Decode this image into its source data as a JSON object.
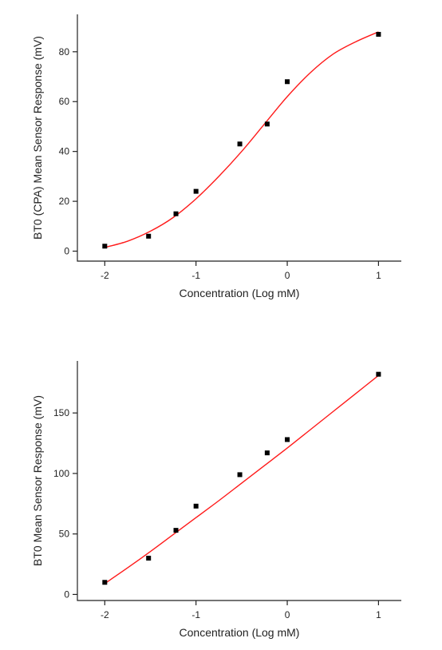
{
  "colors": {
    "background": "#ffffff",
    "axis": "#222222",
    "fit_line": "#ff1a1a",
    "marker": "#000000"
  },
  "chart_data": [
    {
      "type": "scatter",
      "title": "",
      "xlabel": "Concentration (Log mM)",
      "ylabel": "BT0 (CPA) Mean Sensor Response (mV)",
      "xlim": [
        -2.3,
        1.25
      ],
      "ylim": [
        -4,
        95
      ],
      "xticks": [
        -2,
        -1,
        0,
        1
      ],
      "yticks": [
        0,
        20,
        40,
        60,
        80
      ],
      "xtick_labels": [
        "-2",
        "-1",
        "0",
        "1"
      ],
      "ytick_labels": [
        "0",
        "20",
        "40",
        "60",
        "80"
      ],
      "grid": false,
      "legend": "none",
      "marker": "square",
      "series": [
        {
          "x": [
            -2,
            -1.52,
            -1.22,
            -1,
            -0.52,
            -0.22,
            0,
            1
          ],
          "y": [
            2,
            6,
            15,
            24,
            43,
            51,
            68,
            87
          ]
        }
      ],
      "fit": {
        "type": "sigmoid",
        "x": [
          -2,
          -1.75,
          -1.5,
          -1.25,
          -1,
          -0.75,
          -0.5,
          -0.25,
          0,
          0.25,
          0.5,
          0.75,
          1
        ],
        "y": [
          1.5,
          4,
          8,
          13.5,
          21,
          30,
          40,
          51,
          62,
          71.5,
          79,
          84,
          88
        ]
      }
    },
    {
      "type": "scatter",
      "title": "",
      "xlabel": "Concentration (Log mM)",
      "ylabel": "BT0 Mean Sensor Response (mV)",
      "xlim": [
        -2.3,
        1.25
      ],
      "ylim": [
        -5,
        193
      ],
      "xticks": [
        -2,
        -1,
        0,
        1
      ],
      "yticks": [
        0,
        50,
        100,
        150
      ],
      "xtick_labels": [
        "-2",
        "-1",
        "0",
        "1"
      ],
      "ytick_labels": [
        "0",
        "50",
        "100",
        "150"
      ],
      "grid": false,
      "legend": "none",
      "marker": "square",
      "series": [
        {
          "x": [
            -2,
            -1.52,
            -1.22,
            -1,
            -0.52,
            -0.22,
            0,
            1
          ],
          "y": [
            10,
            30,
            53,
            73,
            99,
            117,
            128,
            182
          ]
        }
      ],
      "fit": {
        "type": "sigmoid",
        "x": [
          -2,
          -1.75,
          -1.5,
          -1.25,
          -1,
          -0.75,
          -0.5,
          -0.25,
          0,
          0.25,
          0.5,
          0.75,
          1
        ],
        "y": [
          9,
          22,
          35.5,
          49.5,
          63.5,
          77.5,
          92,
          106.5,
          121,
          136,
          151,
          166,
          181
        ]
      }
    }
  ]
}
